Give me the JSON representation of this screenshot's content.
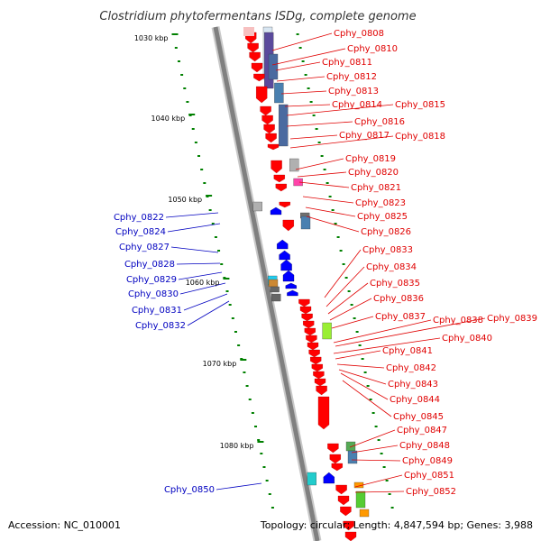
{
  "title": "Clostridium phytofermentans ISDg, complete genome",
  "footer": {
    "accession": "Accession: NC_010001",
    "summary": "Topology: circular; Length: 4,847,594 bp; Genes: 3,988"
  },
  "scale_labels": [
    "1030 kbp",
    "1040 kbp",
    "1050 kbp",
    "1060 kbp",
    "1070 kbp",
    "1080 kbp"
  ],
  "colors": {
    "forward_label": "#e00000",
    "reverse_label": "#0000c0",
    "forward_gene": "#ff0000",
    "reverse_gene": "#0000ff",
    "backbone": "#808080",
    "tick": "#008000"
  },
  "forward_genes": [
    "Cphy_0808",
    "Cphy_0810",
    "Cphy_0811",
    "Cphy_0812",
    "Cphy_0813",
    "Cphy_0814",
    "Cphy_0815",
    "Cphy_0816",
    "Cphy_0817",
    "Cphy_0818",
    "Cphy_0819",
    "Cphy_0820",
    "Cphy_0821",
    "Cphy_0823",
    "Cphy_0825",
    "Cphy_0826",
    "Cphy_0833",
    "Cphy_0834",
    "Cphy_0835",
    "Cphy_0836",
    "Cphy_0837",
    "Cphy_0838",
    "Cphy_0839",
    "Cphy_0840",
    "Cphy_0841",
    "Cphy_0842",
    "Cphy_0843",
    "Cphy_0844",
    "Cphy_0845",
    "Cphy_0847",
    "Cphy_0848",
    "Cphy_0849",
    "Cphy_0851",
    "Cphy_0852"
  ],
  "reverse_genes": [
    "Cphy_0822",
    "Cphy_0824",
    "Cphy_0827",
    "Cphy_0828",
    "Cphy_0829",
    "Cphy_0830",
    "Cphy_0831",
    "Cphy_0832",
    "Cphy_0850"
  ]
}
